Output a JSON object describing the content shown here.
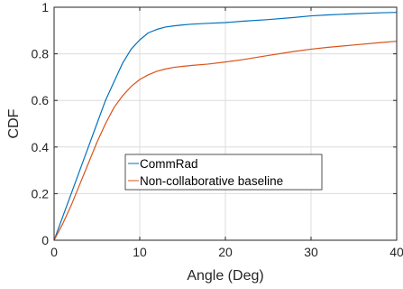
{
  "chart_data": {
    "type": "line",
    "title": "",
    "xlabel": "Angle (Deg)",
    "ylabel": "CDF",
    "xlim": [
      0,
      40
    ],
    "ylim": [
      0,
      1
    ],
    "xticks": [
      0,
      10,
      20,
      30,
      40
    ],
    "yticks": [
      0,
      0.2,
      0.4,
      0.6,
      0.8,
      1
    ],
    "ytick_labels": [
      "0",
      "0.2",
      "0.4",
      "0.6",
      "0.8",
      "1"
    ],
    "grid": true,
    "legend_position": "center",
    "series": [
      {
        "name": "CommRad",
        "color": "#0072BD",
        "x": [
          0,
          1,
          2,
          3,
          4,
          5,
          6,
          7,
          8,
          9,
          10,
          11,
          12,
          13,
          14,
          15,
          16,
          18,
          20,
          22,
          25,
          28,
          30,
          32,
          35,
          38,
          40
        ],
        "y": [
          0,
          0.1,
          0.2,
          0.3,
          0.4,
          0.5,
          0.6,
          0.68,
          0.76,
          0.82,
          0.86,
          0.89,
          0.905,
          0.915,
          0.92,
          0.924,
          0.927,
          0.931,
          0.934,
          0.94,
          0.947,
          0.956,
          0.963,
          0.967,
          0.972,
          0.976,
          0.978
        ]
      },
      {
        "name": "Non-collaborative baseline",
        "color": "#D95319",
        "x": [
          0,
          1,
          2,
          3,
          4,
          5,
          6,
          7,
          8,
          9,
          10,
          11,
          12,
          13,
          14,
          15,
          16,
          18,
          20,
          22,
          25,
          28,
          30,
          32,
          35,
          38,
          40
        ],
        "y": [
          0,
          0.07,
          0.15,
          0.24,
          0.33,
          0.42,
          0.5,
          0.57,
          0.62,
          0.66,
          0.69,
          0.71,
          0.725,
          0.735,
          0.742,
          0.746,
          0.75,
          0.756,
          0.765,
          0.775,
          0.793,
          0.81,
          0.82,
          0.828,
          0.838,
          0.848,
          0.854
        ]
      }
    ]
  }
}
